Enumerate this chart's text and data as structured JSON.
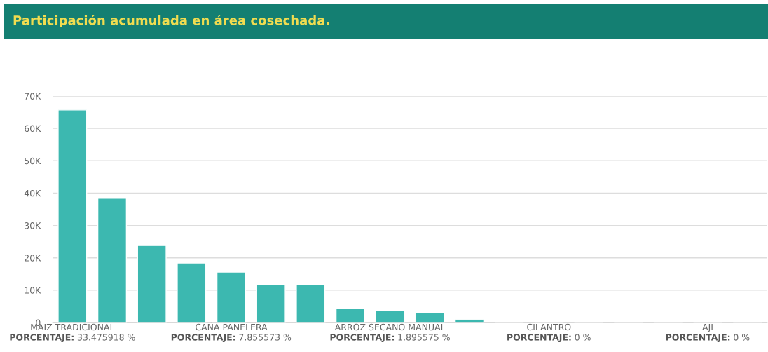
{
  "chart_data": {
    "type": "bar",
    "title": "Participación acumulada en área cosechada.",
    "categories": [
      "MAIZ TRADICIONAL\nPORCENTAJE: 33.475918 %",
      null,
      null,
      null,
      "CAÑA PANELERA\nPORCENTAJE: 7.855573 %",
      null,
      null,
      null,
      "ARROZ SECANO MANUAL\nPORCENTAJE: 1.895575 %",
      null,
      null,
      null,
      "CILANTRO\nPORCENTAJE: 0 %",
      null,
      null,
      null,
      "AJI\nPORCENTAJE: 0 %",
      null
    ],
    "values": [
      65700,
      38400,
      23800,
      18400,
      15600,
      11700,
      11700,
      4500,
      3700,
      3200,
      900,
      0,
      0,
      0,
      0,
      0,
      0,
      0
    ],
    "color": "#3cb8b0",
    "ylim": [
      0,
      70000
    ],
    "yticks": [
      0,
      {
        "value": 10000,
        "label": "10K"
      },
      {
        "value": 20000,
        "label": "20K"
      },
      {
        "value": 30000,
        "label": "30K"
      },
      {
        "value": 40000,
        "label": "40K"
      },
      {
        "value": 50000,
        "label": "50K"
      },
      {
        "value": 60000,
        "label": "60K"
      },
      {
        "value": 70000,
        "label": "70K"
      }
    ],
    "grid": "y"
  }
}
